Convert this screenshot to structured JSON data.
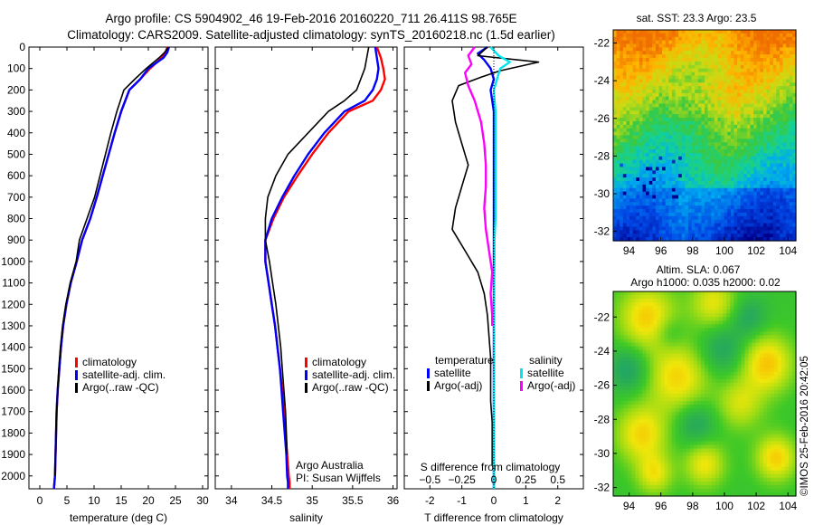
{
  "header": {
    "line1": "Argo profile: CS 5904902_46 19-Feb-2016 20160220_711 26.411S 98.765E",
    "line2": "Climatology: CARS2009. Satellite-adjusted climatology: synTS_20160218.nc (1.5d earlier)"
  },
  "colors": {
    "climatology": "#ff0000",
    "satellite": "#0000ff",
    "argo": "#000000",
    "salinity_satellite": "#00e5ee",
    "salinity_argo": "#ff00ff"
  },
  "chart_data": [
    {
      "type": "line",
      "name": "temperature-profile",
      "xlabel": "temperature (deg C)",
      "xlim": [
        -2,
        31
      ],
      "xticks": [
        0,
        5,
        10,
        15,
        20,
        25,
        30
      ],
      "ylim": [
        2060,
        0
      ],
      "yticks": [
        0,
        100,
        200,
        300,
        400,
        500,
        600,
        700,
        800,
        900,
        1000,
        1100,
        1200,
        1300,
        1400,
        1500,
        1600,
        1700,
        1800,
        1900,
        2000
      ],
      "legend": [
        "climatology",
        "satellite-adj. clim.",
        "Argo(..raw -QC)"
      ],
      "legend_position": "lower-right",
      "series": [
        {
          "name": "climatology",
          "color": "#ff0000",
          "x": [
            23.5,
            23.2,
            22.5,
            20.3,
            18.5,
            16.5,
            15.0,
            13.8,
            12.7,
            11.6,
            10.5,
            9.3,
            7.8,
            6.8,
            5.7,
            4.9,
            4.3,
            3.9,
            3.6,
            3.3,
            3.1,
            3.0,
            2.9,
            2.8,
            2.7,
            2.6
          ],
          "y": [
            0,
            25,
            50,
            100,
            150,
            200,
            300,
            400,
            500,
            600,
            700,
            800,
            900,
            1000,
            1100,
            1200,
            1300,
            1400,
            1500,
            1600,
            1700,
            1800,
            1900,
            2000,
            2030,
            2060
          ]
        },
        {
          "name": "satellite-adj. clim.",
          "color": "#0000ff",
          "x": [
            23.8,
            23.5,
            22.8,
            20.0,
            18.5,
            16.5,
            15.0,
            13.8,
            12.7,
            11.6,
            10.5,
            9.3,
            7.8,
            6.8,
            5.7,
            4.9,
            4.3,
            3.9,
            3.6,
            3.3,
            3.1,
            3.0,
            2.9,
            2.8,
            2.7,
            2.6
          ],
          "y": [
            0,
            25,
            50,
            100,
            150,
            200,
            300,
            400,
            500,
            600,
            700,
            800,
            900,
            1000,
            1100,
            1200,
            1300,
            1400,
            1500,
            1600,
            1700,
            1800,
            1900,
            2000,
            2030,
            2060
          ]
        },
        {
          "name": "Argo(..raw -QC)",
          "color": "#000000",
          "x": [
            23.7,
            23.0,
            22.0,
            19.6,
            17.5,
            15.5,
            14.2,
            13.1,
            12.1,
            11.1,
            10.1,
            8.7,
            7.3,
            6.7,
            5.6,
            4.8,
            4.2,
            3.8,
            3.5,
            3.3,
            3.1,
            3.0,
            2.9,
            2.8
          ],
          "y": [
            0,
            25,
            50,
            100,
            150,
            200,
            300,
            400,
            500,
            600,
            700,
            800,
            900,
            1000,
            1100,
            1200,
            1300,
            1400,
            1500,
            1600,
            1700,
            1800,
            1900,
            2000
          ]
        }
      ]
    },
    {
      "type": "line",
      "name": "salinity-profile",
      "xlabel": "salinity",
      "xlim": [
        33.8,
        36.05
      ],
      "xticks": [
        34,
        34.5,
        35,
        35.5,
        36
      ],
      "ylim": [
        2060,
        0
      ],
      "legend": [
        "climatology",
        "satellite-adj. clim.",
        "Argo(..raw -QC)"
      ],
      "legend_position": "lower-right",
      "annotations": [
        "Argo Australia",
        "PI: Susan Wijffels"
      ],
      "series": [
        {
          "name": "climatology",
          "color": "#ff0000",
          "x": [
            35.8,
            35.85,
            35.88,
            35.9,
            35.85,
            35.75,
            35.45,
            35.2,
            35.0,
            34.82,
            34.65,
            34.52,
            34.42,
            34.42,
            34.46,
            34.5,
            34.54,
            34.57,
            34.6,
            34.63,
            34.65,
            34.67,
            34.69,
            34.71,
            34.72,
            34.72
          ],
          "y": [
            0,
            50,
            100,
            150,
            200,
            250,
            300,
            400,
            500,
            600,
            700,
            800,
            900,
            1000,
            1100,
            1200,
            1300,
            1400,
            1500,
            1600,
            1700,
            1800,
            1900,
            2000,
            2030,
            2060
          ]
        },
        {
          "name": "satellite-adj. clim.",
          "color": "#0000ff",
          "x": [
            35.78,
            35.8,
            35.82,
            35.8,
            35.75,
            35.65,
            35.4,
            35.15,
            34.95,
            34.78,
            34.63,
            34.5,
            34.42,
            34.42,
            34.46,
            34.5,
            34.54,
            34.57,
            34.6,
            34.62,
            34.64,
            34.66,
            34.68,
            34.69,
            34.7,
            34.7
          ],
          "y": [
            0,
            50,
            100,
            150,
            200,
            250,
            300,
            400,
            500,
            600,
            700,
            800,
            900,
            1000,
            1100,
            1200,
            1300,
            1400,
            1500,
            1600,
            1700,
            1800,
            1900,
            2000,
            2030,
            2060
          ]
        },
        {
          "name": "Argo(..raw -QC)",
          "color": "#000000",
          "x": [
            35.7,
            35.65,
            35.6,
            35.55,
            35.4,
            35.2,
            34.95,
            34.7,
            34.55,
            34.45,
            34.42,
            34.42,
            34.47,
            34.51,
            34.55,
            34.58,
            34.61,
            34.63,
            34.65,
            34.67,
            34.68,
            34.69
          ],
          "y": [
            0,
            100,
            150,
            200,
            250,
            300,
            400,
            500,
            600,
            700,
            800,
            900,
            1000,
            1100,
            1200,
            1300,
            1400,
            1500,
            1600,
            1700,
            1800,
            1900
          ]
        }
      ]
    },
    {
      "type": "line",
      "name": "difference-profile",
      "xlabel": "T difference from climatology",
      "xlabel_top": "S difference from climatology",
      "xlim": [
        -2.8,
        2.8
      ],
      "xticks": [
        -2,
        -1,
        0,
        1,
        2
      ],
      "s_ticks": [
        -0.5,
        -0.25,
        0,
        0.25,
        0.5
      ],
      "s_tick_labels": [
        "−0.5",
        "−0.25",
        "0",
        "0.25",
        "0.5"
      ],
      "ylim": [
        2060,
        0
      ],
      "legend_titles": [
        "temperature",
        "salinity"
      ],
      "legend": [
        "satellite",
        "Argo(-adj)",
        "satellite",
        "Argo(-adj)"
      ],
      "series": [
        {
          "name": "temperature satellite",
          "color": "#0000ff",
          "x": [
            -0.2,
            -0.5,
            -0.3,
            -0.1,
            0.0,
            -0.1,
            0.0,
            0.0,
            0.0,
            0.0,
            0.0,
            0.0,
            0.0,
            0.0,
            0.0,
            0.0,
            0.0,
            0.0,
            0.0,
            0.0,
            0.0,
            0.0,
            0.0,
            0.0,
            0.0
          ],
          "y": [
            0,
            30,
            60,
            100,
            150,
            200,
            300,
            400,
            500,
            600,
            700,
            800,
            900,
            1000,
            1100,
            1200,
            1300,
            1400,
            1500,
            1600,
            1700,
            1800,
            1900,
            2000,
            2060
          ]
        },
        {
          "name": "temperature Argo(-adj)",
          "color": "#000000",
          "x": [
            -0.2,
            -0.5,
            1.4,
            0.2,
            -0.4,
            -1.1,
            -1.3,
            -1.2,
            -1.0,
            -0.8,
            -1.0,
            -1.2,
            -1.3,
            -0.9,
            -0.5,
            -0.3,
            -0.2,
            -0.15,
            -0.1,
            -0.1,
            -0.1,
            -0.05,
            -0.05,
            -0.05
          ],
          "y": [
            0,
            40,
            70,
            110,
            140,
            180,
            250,
            350,
            450,
            550,
            650,
            750,
            850,
            950,
            1050,
            1150,
            1250,
            1350,
            1450,
            1550,
            1650,
            1750,
            1850,
            1950
          ]
        },
        {
          "name": "salinity satellite",
          "color": "#00e5ee",
          "x": [
            -0.1,
            0.15,
            0.5,
            0.2,
            0.1,
            0.0,
            0.05,
            0.05,
            0.05,
            0.05,
            0.05,
            0.05,
            0.02,
            0.02,
            0.01,
            0.01,
            0.01,
            0.01,
            0.01,
            0.0,
            0.0,
            0.0,
            0.0,
            0.0
          ],
          "y": [
            0,
            40,
            70,
            100,
            150,
            200,
            300,
            400,
            500,
            600,
            700,
            800,
            900,
            1000,
            1100,
            1200,
            1300,
            1400,
            1500,
            1600,
            1700,
            1800,
            1900,
            2060
          ]
        },
        {
          "name": "salinity Argo(-adj)",
          "color": "#ff00ff",
          "x": [
            -0.6,
            -0.8,
            -0.7,
            -0.9,
            -0.8,
            -0.6,
            -0.4,
            -0.3,
            -0.25,
            -0.25,
            -0.3,
            -0.25,
            -0.15,
            -0.05,
            -0.1,
            -0.05,
            -0.05
          ],
          "y": [
            0,
            40,
            80,
            120,
            180,
            250,
            350,
            450,
            550,
            650,
            750,
            850,
            950,
            1050,
            1150,
            1250,
            1300
          ]
        }
      ]
    },
    {
      "type": "heatmap",
      "name": "satellite-sst-map",
      "title": "sat. SST: 23.3 Argo: 23.5",
      "xlim": [
        93,
        104.5
      ],
      "ylim": [
        -32.5,
        -21.3
      ],
      "xticks": [
        94,
        96,
        98,
        100,
        102,
        104
      ],
      "yticks": [
        -22,
        -24,
        -26,
        -28,
        -30,
        -32
      ]
    },
    {
      "type": "heatmap",
      "name": "altimetry-sla-map",
      "title": "Altim. SLA: 0.067",
      "subtitle": "Argo h1000: 0.035 h2000: 0.02",
      "xlim": [
        93,
        104.5
      ],
      "ylim": [
        -32.5,
        -20.5
      ],
      "xticks": [
        94,
        96,
        98,
        100,
        102,
        104
      ],
      "yticks": [
        -22,
        -24,
        -26,
        -28,
        -30,
        -32
      ]
    }
  ],
  "credit": "©IMOS 25-Feb-2016 20:42:05"
}
